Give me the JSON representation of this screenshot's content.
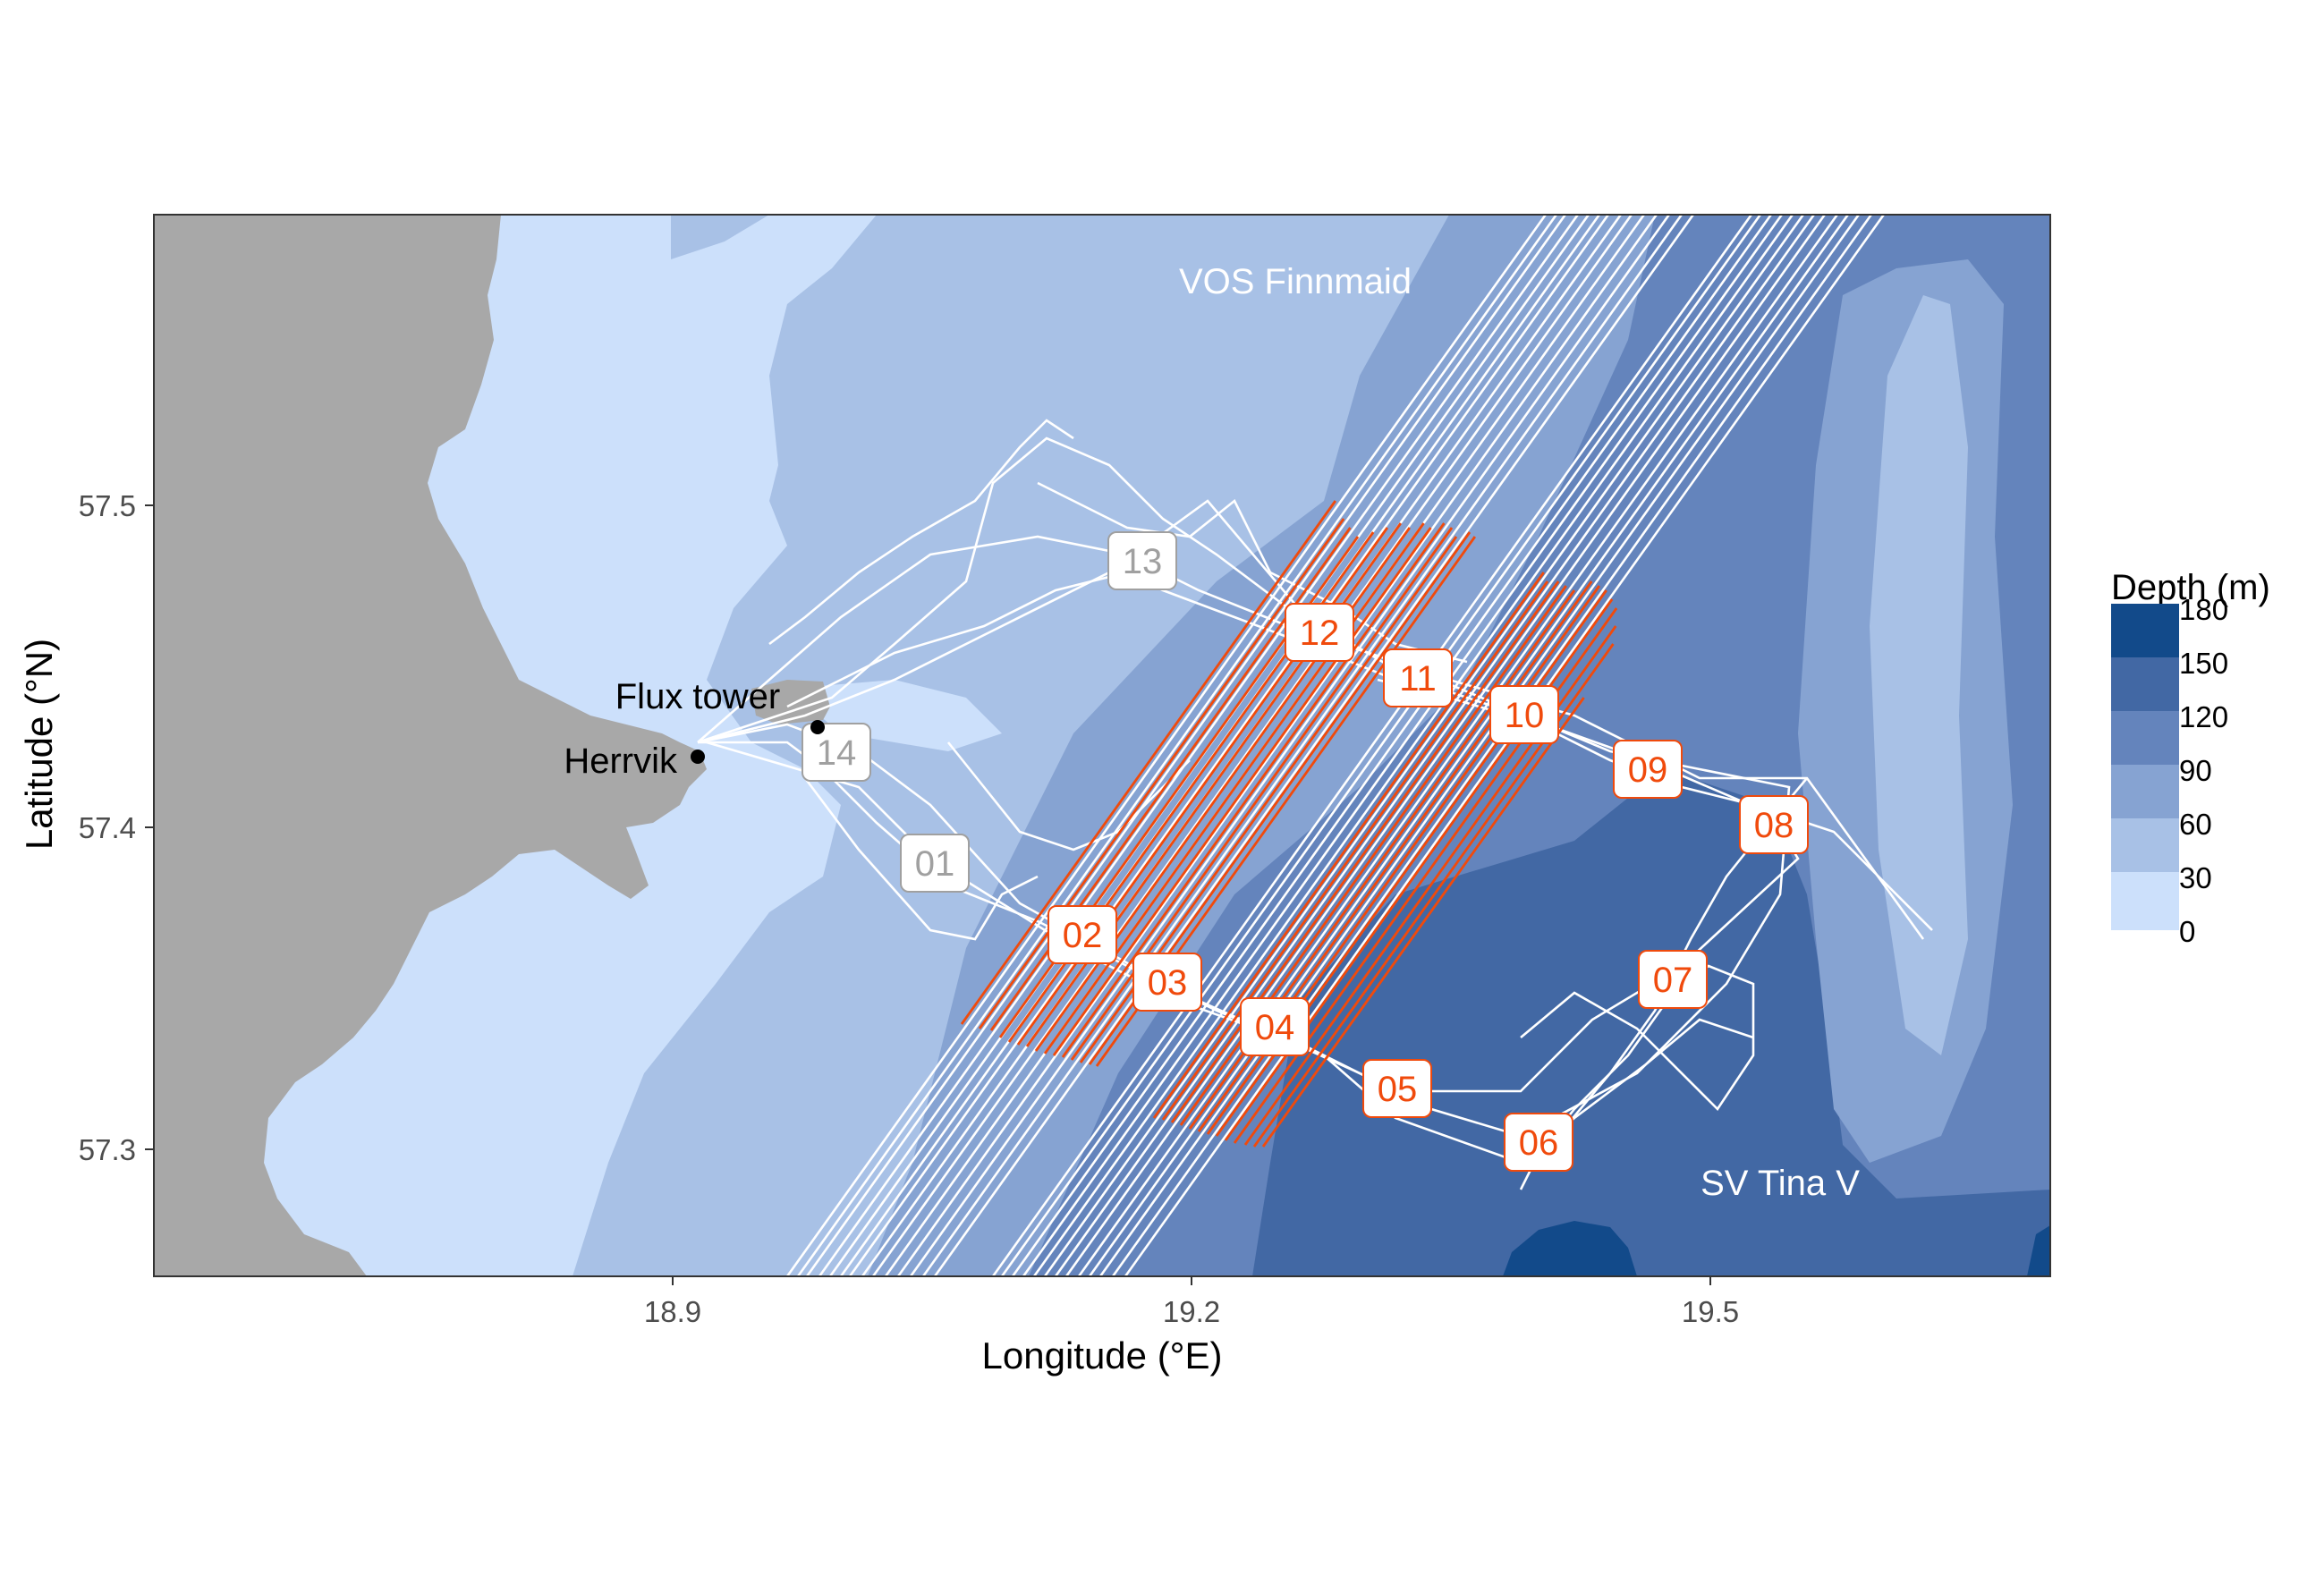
{
  "figure": {
    "xlabel": "Longitude (°E)",
    "ylabel": "Latitude (°N)",
    "xticks": [
      "18.9",
      "19.2",
      "19.5"
    ],
    "yticks": [
      "57.5",
      "57.4",
      "57.3"
    ],
    "annotations": {
      "vos": "VOS Finnmaid",
      "tina": "SV Tina V",
      "flux_tower": "Flux tower",
      "herrvik": "Herrvik"
    },
    "legend": {
      "title": "Depth (m)",
      "ticks": [
        "180",
        "150",
        "120",
        "90",
        "60",
        "30",
        "0"
      ]
    },
    "stations": [
      {
        "id": "01",
        "state": "inactive"
      },
      {
        "id": "02",
        "state": "active"
      },
      {
        "id": "03",
        "state": "active"
      },
      {
        "id": "04",
        "state": "active"
      },
      {
        "id": "05",
        "state": "active"
      },
      {
        "id": "06",
        "state": "active"
      },
      {
        "id": "07",
        "state": "active"
      },
      {
        "id": "08",
        "state": "active"
      },
      {
        "id": "09",
        "state": "active"
      },
      {
        "id": "10",
        "state": "active"
      },
      {
        "id": "11",
        "state": "active"
      },
      {
        "id": "12",
        "state": "active"
      },
      {
        "id": "13",
        "state": "inactive"
      },
      {
        "id": "14",
        "state": "inactive"
      }
    ],
    "colors": {
      "land": "#a8a8a8",
      "depth_0_30": "#cce0fb",
      "depth_30_60": "#a8c1e6",
      "depth_60_90": "#86a3d2",
      "depth_90_120": "#6484bc",
      "depth_120_150": "#4268a4",
      "depth_150_180": "#124a8a",
      "track": "#ffffff",
      "transect": "#f04a0c",
      "inactive_label": "#a0a0a0"
    }
  }
}
